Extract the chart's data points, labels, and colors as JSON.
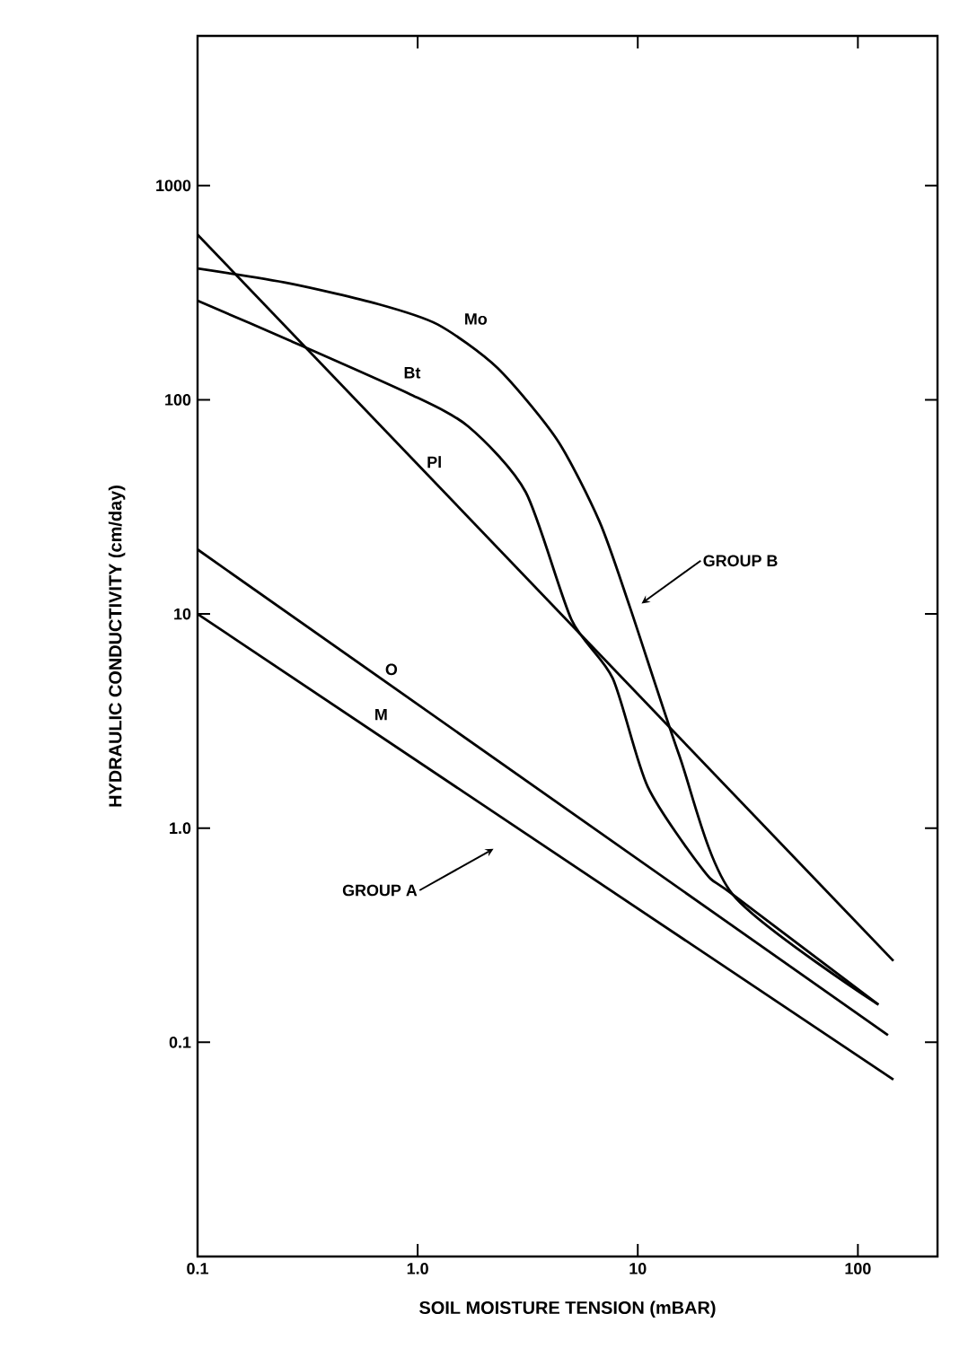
{
  "chart_data": {
    "type": "line",
    "xlabel": "SOIL MOISTURE TENSION (mBAR)",
    "ylabel": "HYDRAULIC CONDUCTIVITY (cm/day)",
    "log": "xy",
    "xlim": [
      0.1,
      230
    ],
    "ylim": [
      0.01,
      5000
    ],
    "xticks": [
      0.1,
      {
        "value": 1,
        "label": "1.0"
      },
      10,
      100
    ],
    "yticks": [
      0.1,
      {
        "value": 1,
        "label": "1.0"
      },
      10,
      100,
      1000
    ],
    "series": [
      {
        "name": "Mo",
        "color": "#000000",
        "x": [
          0.1,
          0.26,
          0.66,
          1.23,
          2.3,
          4.3,
          6.7,
          9.2,
          15.4,
          27,
          124
        ],
        "values": [
          410,
          350,
          280,
          225,
          141,
          65,
          27,
          10.8,
          2.2,
          0.49,
          0.15
        ]
      },
      {
        "name": "Bt",
        "color": "#000000",
        "x": [
          0.1,
          0.26,
          0.91,
          1.7,
          3.1,
          5.0,
          7.7,
          11.1,
          20,
          27,
          124
        ],
        "values": [
          290,
          190,
          107,
          75,
          37,
          9.4,
          5.0,
          1.56,
          0.63,
          0.49,
          0.15
        ]
      },
      {
        "name": "Pl",
        "color": "#000000",
        "x": [
          0.1,
          145
        ],
        "values": [
          590,
          0.24
        ]
      },
      {
        "name": "O",
        "color": "#000000",
        "x": [
          0.1,
          137
        ],
        "values": [
          20,
          0.108
        ]
      },
      {
        "name": "M",
        "color": "#000000",
        "x": [
          0.1,
          145
        ],
        "values": [
          10,
          0.067
        ]
      }
    ],
    "annotations": [
      "GROUP B",
      "GROUP A"
    ]
  }
}
